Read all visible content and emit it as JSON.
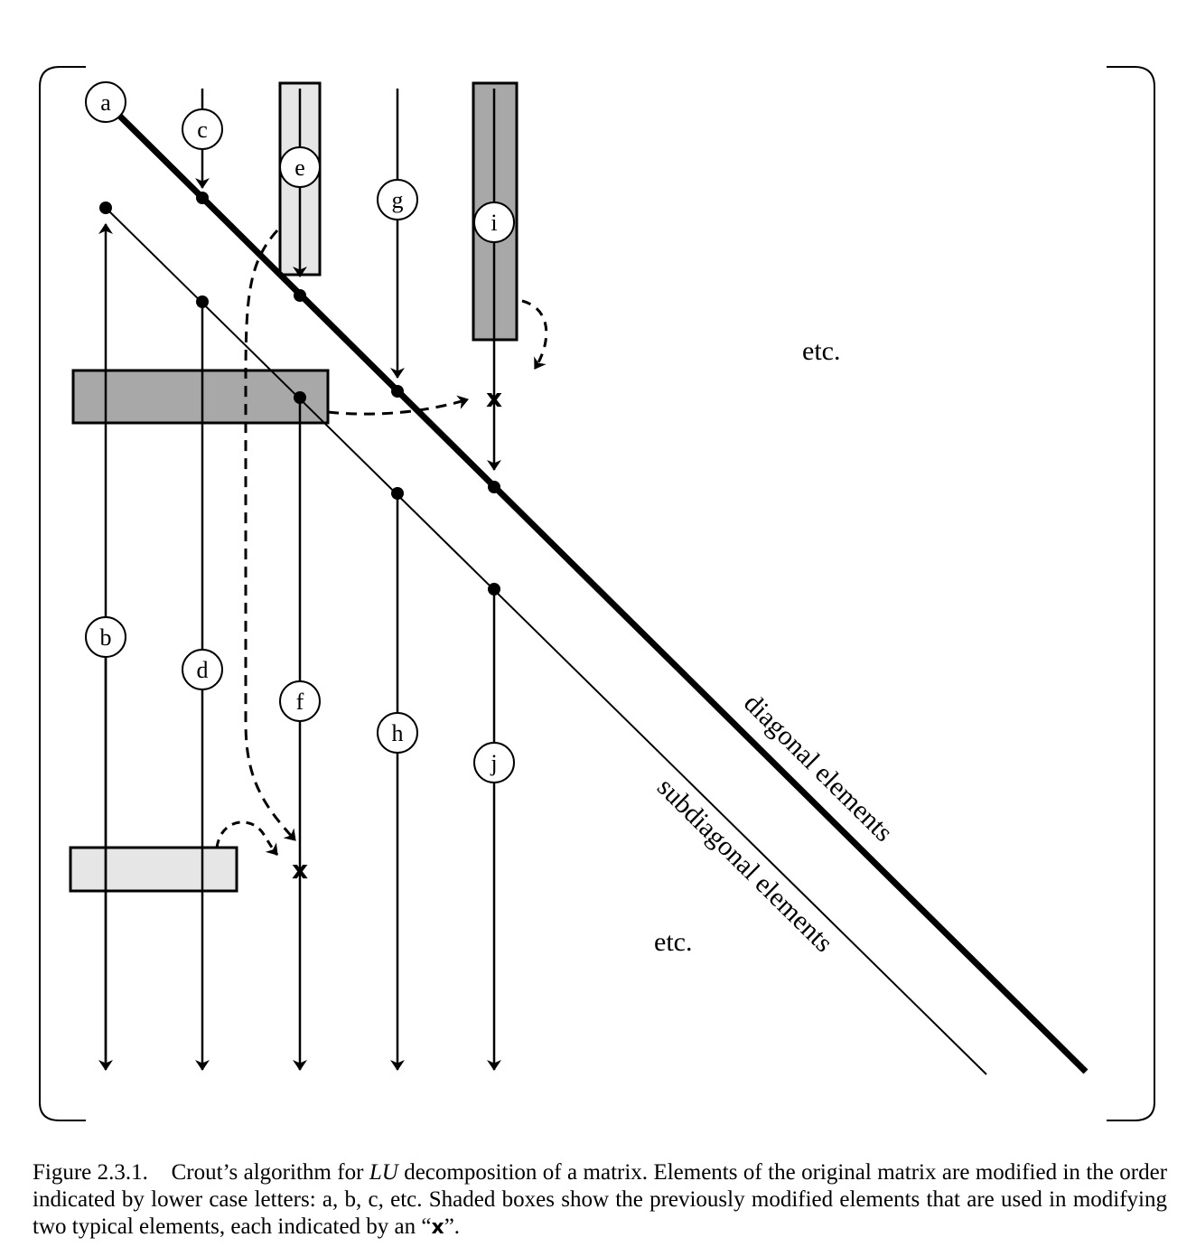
{
  "diagram": {
    "element_labels": {
      "a": "a",
      "b": "b",
      "c": "c",
      "d": "d",
      "e": "e",
      "f": "f",
      "g": "g",
      "h": "h",
      "i": "i",
      "j": "j"
    },
    "marker_x": "x",
    "etc_upper": "etc.",
    "etc_lower": "etc.",
    "diagonal_label": "diagonal elements",
    "subdiagonal_label": "subdiagonal elements",
    "colors": {
      "light_shade": "#e6e6e6",
      "dark_shade": "#a8a8a8",
      "ink": "#000000"
    }
  },
  "caption": {
    "figure_number": "Figure 2.3.1.",
    "text_before_italic": "Crout’s algorithm for ",
    "italic": "LU",
    "text_after_italic": " decomposition of a matrix. Elements of the original matrix are modified in the order indicated by lower case letters: a, b, c, etc. Shaded boxes show the previously modified elements that are used in modifying two typical elements, each indicated by an “",
    "x_glyph": "x",
    "text_end": "”."
  }
}
